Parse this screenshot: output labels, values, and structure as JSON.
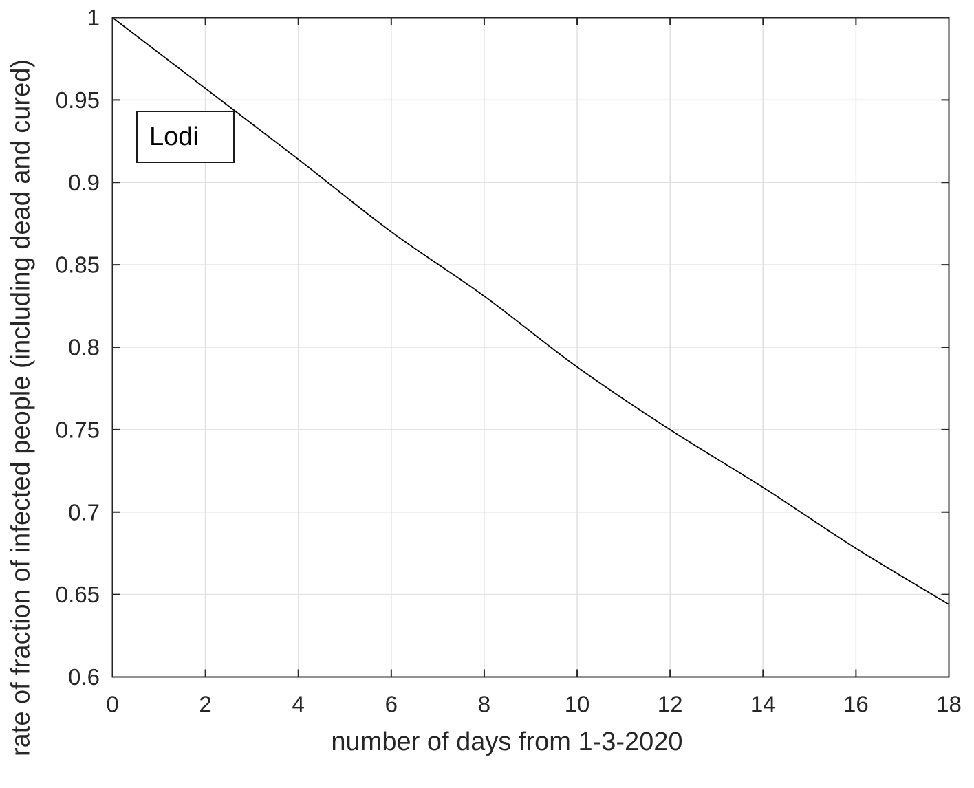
{
  "chart_data": {
    "type": "line",
    "title": "",
    "xlabel": "number of days from 1-3-2020",
    "ylabel": "rate of fraction of infected people (including dead and cured)",
    "xlim": [
      0,
      18
    ],
    "ylim": [
      0.6,
      1
    ],
    "xticks": [
      0,
      2,
      4,
      6,
      8,
      10,
      12,
      14,
      16,
      18
    ],
    "xtick_labels": [
      "0",
      "2",
      "4",
      "6",
      "8",
      "10",
      "12",
      "14",
      "16",
      "18"
    ],
    "yticks": [
      0.6,
      0.65,
      0.7,
      0.75,
      0.8,
      0.85,
      0.9,
      0.95,
      1
    ],
    "ytick_labels": [
      "0.6",
      "0.65",
      "0.7",
      "0.75",
      "0.8",
      "0.85",
      "0.9",
      "0.95",
      "1"
    ],
    "grid": true,
    "legend": {
      "label": "Lodi",
      "position": "upper-left"
    },
    "series": [
      {
        "name": "Lodi",
        "color": "#000000",
        "x": [
          0,
          2,
          4,
          6,
          8,
          10,
          12,
          14,
          16,
          18
        ],
        "y": [
          1.0,
          0.957,
          0.914,
          0.87,
          0.831,
          0.788,
          0.75,
          0.715,
          0.678,
          0.644
        ]
      }
    ],
    "colors": {
      "grid": "#e0e0e0",
      "axis": "#262626",
      "tick_text": "#262626",
      "line": "#000000",
      "background": "#ffffff"
    }
  }
}
